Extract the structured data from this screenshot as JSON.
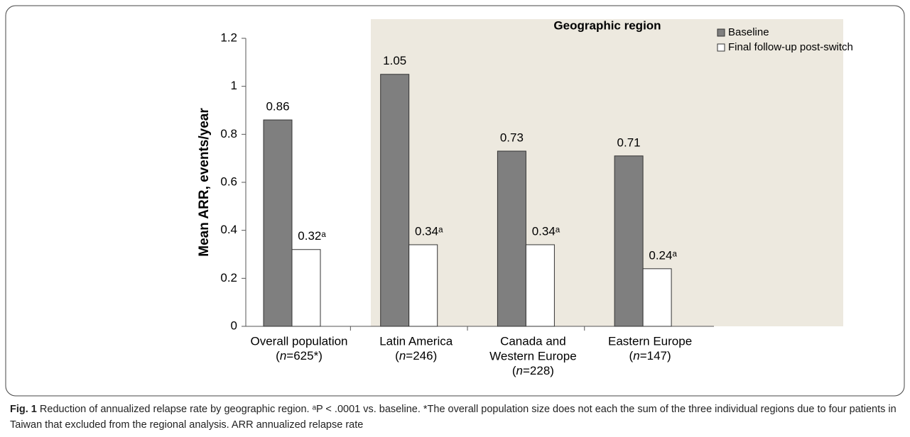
{
  "chart_data": {
    "type": "bar",
    "annotation": "Geographic region",
    "ylabel": "Mean ARR, events/year",
    "categories": [
      [
        "Overall population",
        "(n=625*)"
      ],
      [
        "Latin America",
        "(n=246)"
      ],
      [
        "Canada and",
        "Western Europe",
        "(n=228)"
      ],
      [
        "Eastern Europe",
        "(n=147)"
      ]
    ],
    "series": [
      {
        "name": "Baseline",
        "color": "#7f7f7f",
        "values": [
          0.86,
          1.05,
          0.73,
          0.71
        ]
      },
      {
        "name": "Final follow-up post-switch",
        "color": "#ffffff",
        "values": [
          0.32,
          0.34,
          0.34,
          0.24
        ],
        "value_labels": [
          "0.32ᵃ",
          "0.34ᵃ",
          "0.34ᵃ",
          "0.24ᵃ"
        ]
      }
    ],
    "ylim": [
      0,
      1.2
    ],
    "yticks": [
      0,
      0.2,
      0.4,
      0.6,
      0.8,
      1,
      1.2
    ],
    "grid": false,
    "legend": "upper right"
  },
  "caption": {
    "label": "Fig. 1",
    "text": "Reduction of annualized relapse rate by geographic region. ᵃP < .0001 vs. baseline. *The overall population size does not each the sum of the three individual regions due to four patients in Taiwan that excluded from the regional analysis. ARR annualized relapse rate"
  }
}
